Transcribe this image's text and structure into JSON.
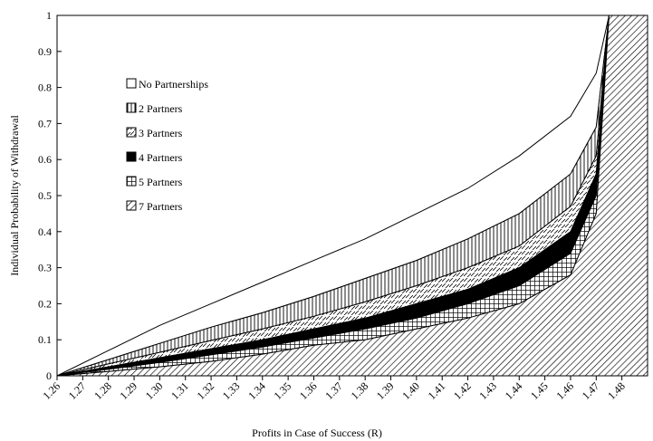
{
  "chart_data": {
    "type": "area",
    "xlabel": "Profits in Case of Success (R)",
    "ylabel": "Individual Probability of Withdrawal",
    "xlim": [
      1.26,
      1.49
    ],
    "ylim": [
      0,
      1
    ],
    "x_ticks": [
      "1.26",
      "1.27",
      "1.28",
      "1.29",
      "1.30",
      "1.31",
      "1.32",
      "1.33",
      "1.34",
      "1.35",
      "1.36",
      "1.37",
      "1.38",
      "1.39",
      "1.40",
      "1.41",
      "1.42",
      "1.43",
      "1.44",
      "1.45",
      "1.46",
      "1.47",
      "1.48"
    ],
    "y_ticks": [
      "0",
      "0.1",
      "0.2",
      "0.3",
      "0.4",
      "0.5",
      "0.6",
      "0.7",
      "0.8",
      "0.9",
      "1"
    ],
    "grid": false,
    "legend_position": "upper-left",
    "x": [
      1.26,
      1.28,
      1.3,
      1.32,
      1.34,
      1.36,
      1.38,
      1.4,
      1.42,
      1.44,
      1.46,
      1.47,
      1.475
    ],
    "series": [
      {
        "name": "No Partnerships",
        "pattern": "empty",
        "values": [
          0.0,
          0.07,
          0.14,
          0.2,
          0.26,
          0.32,
          0.38,
          0.45,
          0.52,
          0.61,
          0.72,
          0.84,
          1.0
        ]
      },
      {
        "name": "2 Partners",
        "pattern": "vertical",
        "values": [
          0.0,
          0.045,
          0.09,
          0.135,
          0.175,
          0.22,
          0.27,
          0.32,
          0.38,
          0.45,
          0.56,
          0.69,
          1.0
        ]
      },
      {
        "name": "3 Partners",
        "pattern": "dashes",
        "values": [
          0.0,
          0.033,
          0.065,
          0.098,
          0.13,
          0.165,
          0.205,
          0.25,
          0.3,
          0.36,
          0.47,
          0.61,
          1.0
        ]
      },
      {
        "name": "4 Partners",
        "pattern": "solid",
        "values": [
          0.0,
          0.025,
          0.05,
          0.075,
          0.1,
          0.13,
          0.16,
          0.2,
          0.24,
          0.3,
          0.4,
          0.56,
          1.0
        ]
      },
      {
        "name": "5 Partners",
        "pattern": "grid",
        "values": [
          0.0,
          0.018,
          0.037,
          0.058,
          0.08,
          0.105,
          0.13,
          0.16,
          0.2,
          0.25,
          0.34,
          0.5,
          1.0
        ]
      },
      {
        "name": "7 Partners",
        "pattern": "diagonal",
        "values": [
          0.0,
          0.012,
          0.025,
          0.04,
          0.06,
          0.085,
          0.1,
          0.13,
          0.16,
          0.2,
          0.28,
          0.45,
          1.0
        ]
      }
    ]
  }
}
